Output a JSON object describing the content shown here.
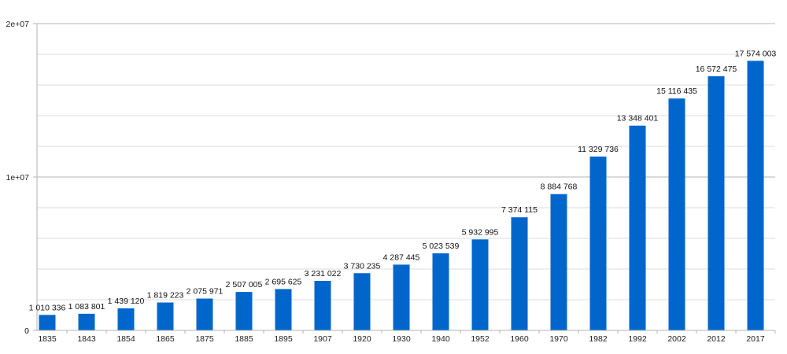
{
  "chart_data": {
    "type": "bar",
    "title": "",
    "xlabel": "",
    "ylabel": "",
    "categories": [
      "1835",
      "1843",
      "1854",
      "1865",
      "1875",
      "1885",
      "1895",
      "1907",
      "1920",
      "1930",
      "1940",
      "1952",
      "1960",
      "1970",
      "1982",
      "1992",
      "2002",
      "2012",
      "2017"
    ],
    "values": [
      1010336,
      1083801,
      1439120,
      1819223,
      2075971,
      2507005,
      2695625,
      3231022,
      3730235,
      4287445,
      5023539,
      5932995,
      7374115,
      8884768,
      11329736,
      13348401,
      15116435,
      16572475,
      17574003
    ],
    "data_labels": [
      "1 010 336",
      "1 083 801",
      "1 439 120",
      "1 819 223",
      "2 075 971",
      "2 507 005",
      "2 695 625",
      "3 231 022",
      "3 730 235",
      "4 287 445",
      "5 023 539",
      "5 932 995",
      "7 374 115",
      "8 884 768",
      "11 329 736",
      "13 348 401",
      "15 116 435",
      "16 572 475",
      "17 574 003"
    ],
    "ylim": [
      0,
      20000000
    ],
    "y_ticks": [
      0,
      10000000,
      20000000
    ],
    "y_tick_labels": [
      "0",
      "1e+07",
      "2e+07"
    ],
    "minor_gridlines": [
      2000000,
      4000000,
      6000000,
      8000000,
      12000000,
      14000000,
      16000000,
      18000000
    ],
    "grid": true,
    "legend": "none",
    "colors": {
      "bar": "#0066cc",
      "major_grid": "#b3b3b3",
      "minor_grid": "#dddddd",
      "axis": "#b3b3b3"
    }
  }
}
